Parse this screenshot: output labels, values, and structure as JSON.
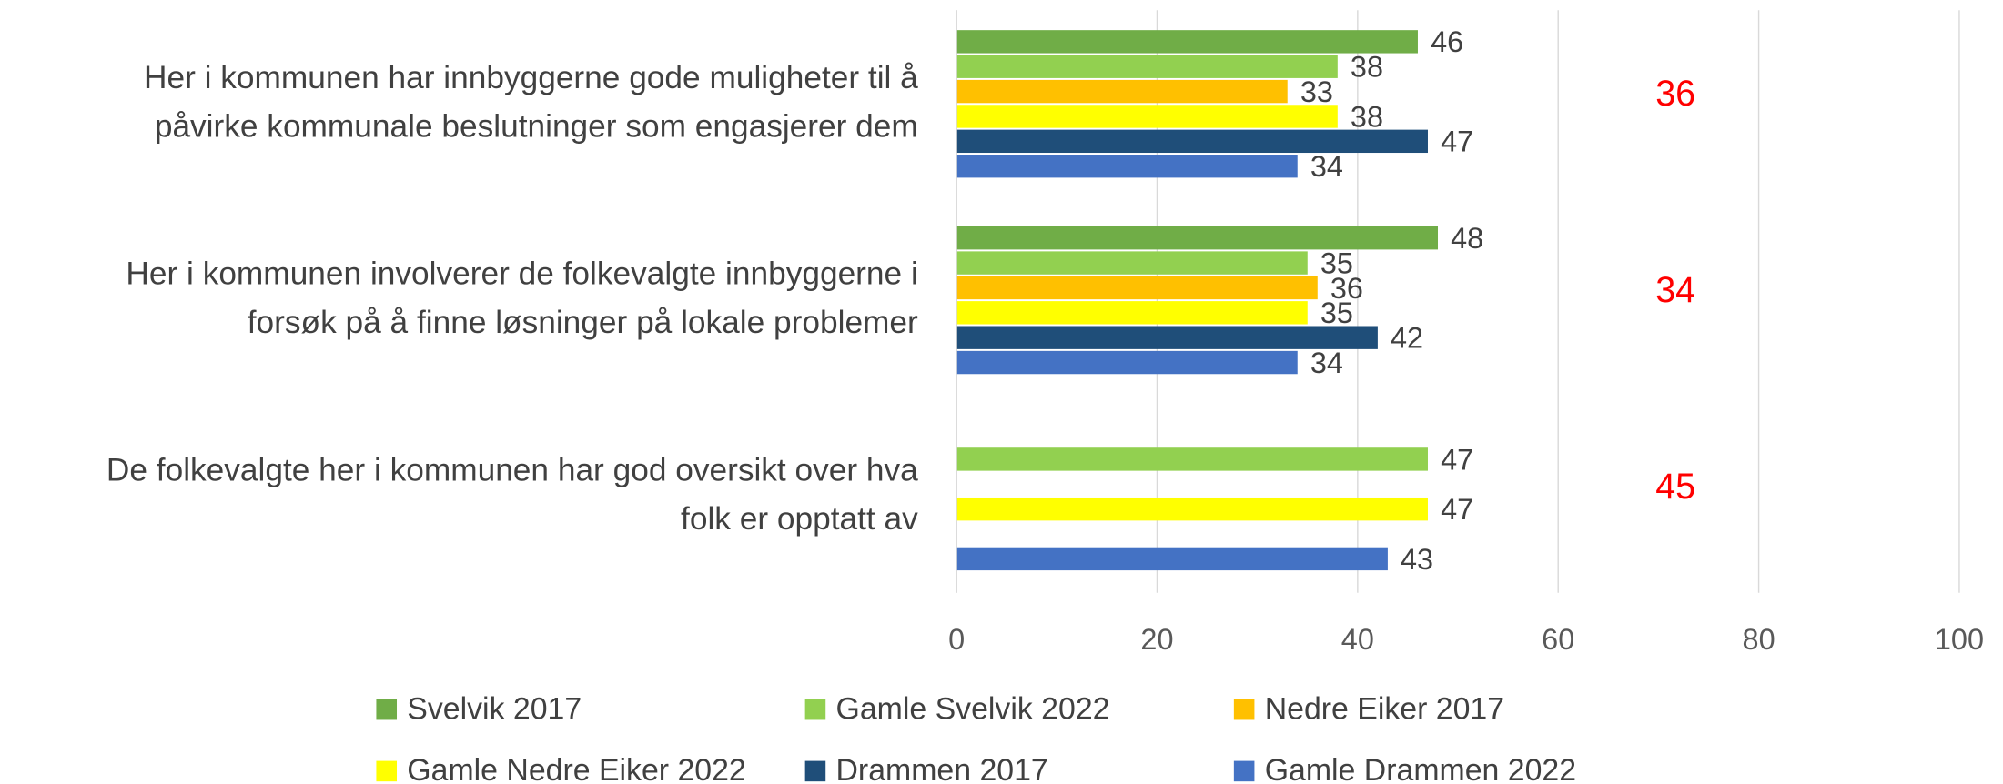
{
  "chart_data": {
    "type": "bar",
    "orientation": "horizontal",
    "categories": [
      [
        "Her i kommunen har innbyggerne gode muligheter til å",
        "påvirke kommunale beslutninger som engasjerer dem"
      ],
      [
        "Her i kommunen involverer de folkevalgte innbyggerne i",
        "forsøk på å finne løsninger på lokale problemer"
      ],
      [
        "De folkevalgte her i kommunen har god oversikt over hva",
        "folk er opptatt av"
      ]
    ],
    "series": [
      {
        "name": "Svelvik 2017",
        "color": "#70ad47",
        "values": [
          46,
          48,
          null
        ]
      },
      {
        "name": "Gamle Svelvik 2022",
        "color": "#92d050",
        "values": [
          38,
          35,
          47
        ]
      },
      {
        "name": "Nedre Eiker 2017",
        "color": "#ffc000",
        "values": [
          33,
          36,
          null
        ]
      },
      {
        "name": "Gamle Nedre Eiker 2022",
        "color": "#ffff00",
        "values": [
          38,
          35,
          47
        ]
      },
      {
        "name": "Drammen 2017",
        "color": "#1f4e79",
        "values": [
          47,
          42,
          null
        ]
      },
      {
        "name": "Gamle Drammen 2022",
        "color": "#4472c4",
        "values": [
          34,
          34,
          43
        ]
      }
    ],
    "annotations": [
      36,
      34,
      45
    ],
    "annotation_color": "#ff0000",
    "xlim": [
      0,
      100
    ],
    "xticks": [
      0,
      20,
      40,
      60,
      80,
      100
    ],
    "grid": true,
    "legend": "bottom"
  }
}
